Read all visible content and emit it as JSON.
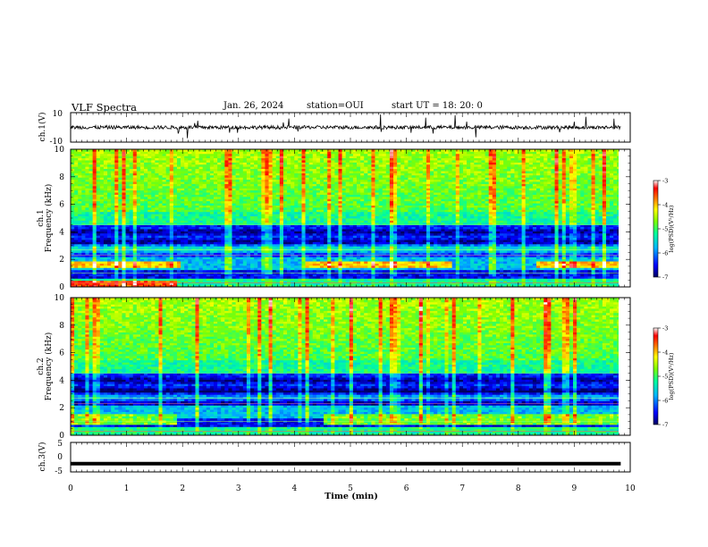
{
  "header": {
    "title": "VLF Spectra",
    "date": "Jan. 26, 2024",
    "station": "station=OUI",
    "start": "start UT =  18: 20: 0"
  },
  "chart_data": [
    {
      "type": "line",
      "panel": "ch1-waveform",
      "ylabel": "ch.1(V)",
      "yticks": [
        "10",
        "-10"
      ],
      "ylim": [
        -10,
        10
      ],
      "xlim": [
        0,
        10
      ],
      "series": [
        {
          "values_description_free": true,
          "baseline": 0,
          "noise_amplitude": 1.2
        }
      ]
    },
    {
      "type": "heatmap",
      "panel": "ch1-spectrogram",
      "ylabel": "ch.1\nFrequency (kHz)",
      "ylabel_lines": [
        "ch.1",
        "Frequency (kHz)"
      ],
      "yticks": [
        "0",
        "2",
        "4",
        "6",
        "8",
        "10"
      ],
      "ylim": [
        0,
        10
      ],
      "xlim": [
        0,
        9.83
      ],
      "colorbar": {
        "label": "log(PSD)(V²/Hz)",
        "ticks": [
          "-3",
          "-4",
          "-5",
          "-6",
          "-7"
        ],
        "range": [
          -7,
          -3
        ]
      }
    },
    {
      "type": "heatmap",
      "panel": "ch2-spectrogram",
      "ylabel_lines": [
        "ch.2",
        "Frequency (kHz)"
      ],
      "yticks": [
        "0",
        "2",
        "4",
        "6",
        "8",
        "10"
      ],
      "ylim": [
        0,
        10
      ],
      "xlim": [
        0,
        9.83
      ],
      "colorbar": {
        "label": "log(PSD)(V²/Hz)",
        "ticks": [
          "-3",
          "-4",
          "-5",
          "-6",
          "-7"
        ],
        "range": [
          -7,
          -3
        ]
      }
    },
    {
      "type": "line",
      "panel": "ch3-waveform",
      "ylabel": "ch.3(V)",
      "yticks": [
        "5",
        "0",
        "-5"
      ],
      "ylim": [
        -5,
        5
      ],
      "xlim": [
        0,
        10
      ],
      "series": [
        {
          "baseline": -2.2
        }
      ]
    }
  ],
  "xaxis": {
    "label": "Time (min)",
    "ticks": [
      "0",
      "1",
      "2",
      "3",
      "4",
      "5",
      "6",
      "7",
      "8",
      "9",
      "10"
    ],
    "xlim": [
      0,
      10
    ]
  },
  "colors": {
    "cmap": [
      "#000080",
      "#0000ff",
      "#00c0ff",
      "#00ff80",
      "#80ff00",
      "#ffff00",
      "#ff8000",
      "#ff0000",
      "#ffffff"
    ]
  }
}
